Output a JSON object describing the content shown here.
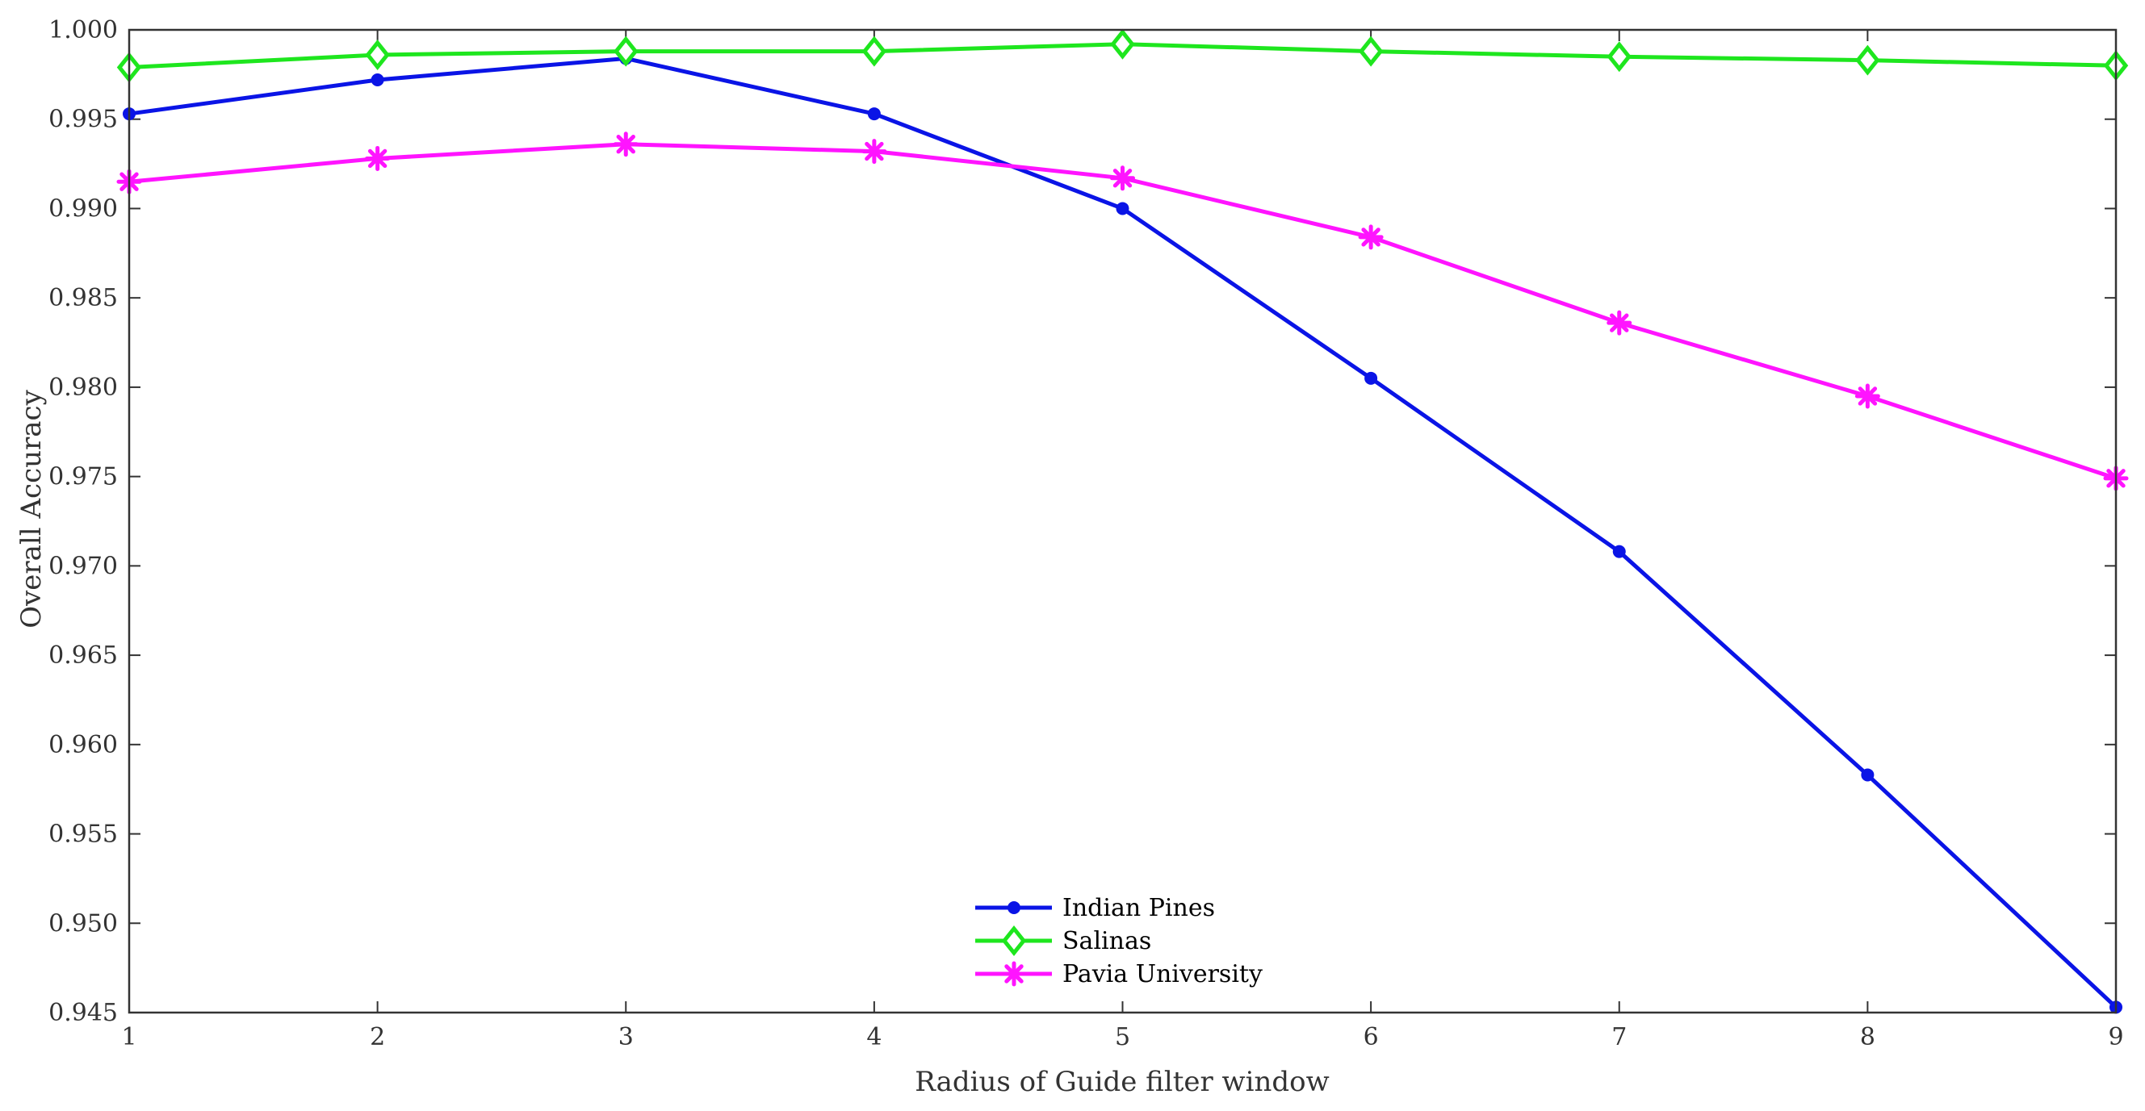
{
  "chart_data": {
    "type": "line",
    "title": "",
    "xlabel": "Radius of Guide filter window",
    "ylabel": "Overall Accuracy",
    "x": [
      1,
      2,
      3,
      4,
      5,
      6,
      7,
      8,
      9
    ],
    "xlim": [
      1,
      9
    ],
    "ylim": [
      0.945,
      1.0
    ],
    "xticks": [
      "1",
      "2",
      "3",
      "4",
      "5",
      "6",
      "7",
      "8",
      "9"
    ],
    "yticks": [
      "0.945",
      "0.950",
      "0.955",
      "0.960",
      "0.965",
      "0.970",
      "0.975",
      "0.980",
      "0.985",
      "0.990",
      "0.995",
      "1.000"
    ],
    "grid": false,
    "legend_position": "bottom-center",
    "series": [
      {
        "name": "Indian Pines",
        "color": "#0a14e6",
        "marker": "dot",
        "values": [
          0.9953,
          0.9972,
          0.9984,
          0.9953,
          0.99,
          0.9805,
          0.9708,
          0.9583,
          0.9453
        ]
      },
      {
        "name": "Salinas",
        "color": "#1ee61e",
        "marker": "diamond",
        "values": [
          0.9979,
          0.9986,
          0.9988,
          0.9988,
          0.9992,
          0.9988,
          0.9985,
          0.9983,
          0.998
        ]
      },
      {
        "name": "Pavia University",
        "color": "#ff14ff",
        "marker": "asterisk",
        "values": [
          0.9915,
          0.9928,
          0.9936,
          0.9932,
          0.9917,
          0.9884,
          0.9836,
          0.9795,
          0.9749
        ]
      }
    ]
  }
}
